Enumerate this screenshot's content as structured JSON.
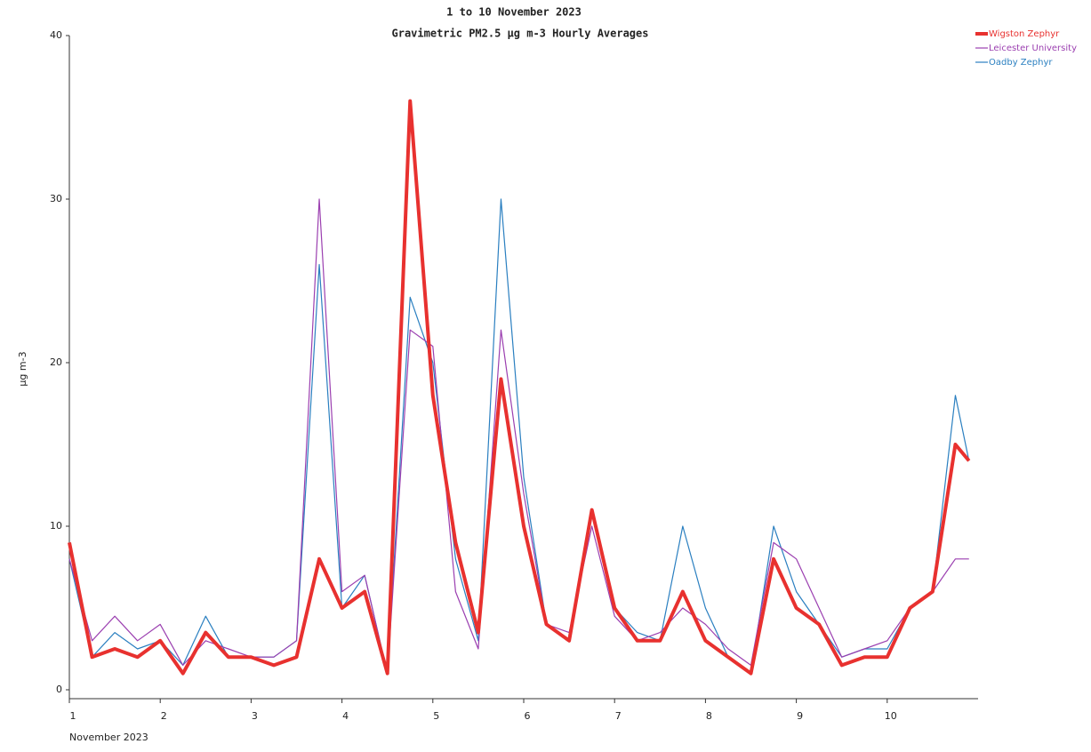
{
  "chart_data": {
    "type": "line",
    "title": "1 to 10 November 2023",
    "subtitle": "Gravimetric PM2.5 µg m-3  Hourly Averages",
    "x_label": "November 2023",
    "y_label": "µg m-3",
    "x": [
      1,
      1.25,
      1.5,
      1.75,
      2,
      2.25,
      2.5,
      2.75,
      3,
      3.25,
      3.5,
      3.75,
      4,
      4.25,
      4.5,
      4.75,
      5,
      5.25,
      5.5,
      5.75,
      6,
      6.25,
      6.5,
      6.75,
      7,
      7.25,
      7.5,
      7.75,
      8,
      8.25,
      8.5,
      8.75,
      9,
      9.25,
      9.5,
      9.75,
      10,
      10.25,
      10.5,
      10.75,
      10.9
    ],
    "series": [
      {
        "name": "Wigston Zephyr",
        "color": "#e8312f",
        "values": [
          9,
          2,
          2.5,
          2,
          3,
          1,
          3.5,
          2,
          2,
          1.5,
          2,
          8,
          5,
          6,
          1,
          36,
          18,
          9,
          3.5,
          19,
          10,
          4,
          3,
          11,
          5,
          3,
          3,
          6,
          3,
          2,
          1,
          8,
          5,
          4,
          1.5,
          2,
          2,
          5,
          6,
          15,
          14
        ]
      },
      {
        "name": "Leicester University",
        "color": "#9b3fb0",
        "values": [
          8,
          3,
          4.5,
          3,
          4,
          1.5,
          3,
          2.5,
          2,
          2,
          3,
          30,
          6,
          7,
          1,
          22,
          21,
          6,
          2.5,
          22,
          12,
          4,
          3.5,
          10,
          4.5,
          3,
          3.5,
          5,
          4,
          2.5,
          1.5,
          9,
          8,
          5,
          2,
          2.5,
          3,
          5,
          6,
          8,
          8
        ]
      },
      {
        "name": "Oadby Zephyr",
        "color": "#2a7fc0",
        "values": [
          8,
          2,
          3.5,
          2.5,
          3,
          1.5,
          4.5,
          2,
          2,
          2,
          3,
          26,
          5,
          7,
          1,
          24,
          20,
          8,
          3,
          30,
          13,
          4,
          3,
          11,
          5,
          3.5,
          3,
          10,
          5,
          2,
          1,
          10,
          6,
          4,
          2,
          2.5,
          2.5,
          5,
          6,
          18,
          14
        ]
      }
    ],
    "xlim": [
      1,
      11
    ],
    "xticks": [
      1,
      2,
      3,
      4,
      5,
      6,
      7,
      8,
      9,
      10
    ],
    "ylim": [
      0,
      40
    ],
    "yticks": [
      0,
      10,
      20,
      30,
      40
    ],
    "grid": false,
    "legend": "top-right"
  }
}
